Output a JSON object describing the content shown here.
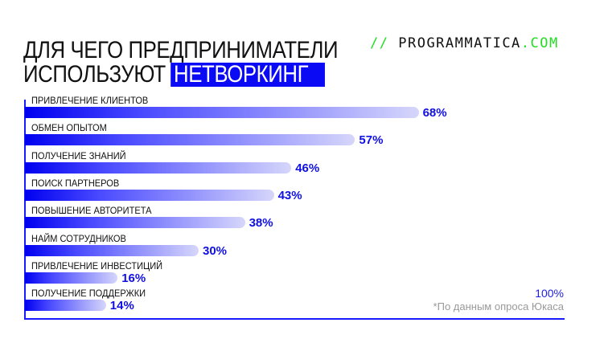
{
  "title": {
    "line1": "ДЛЯ ЧЕГО ПРЕДПРИНИМАТЕЛИ",
    "line2_plain": "ИСПОЛЬЗУЮТ",
    "line2_highlight": "НЕТВОРКИНГ"
  },
  "logo": {
    "slashes": "//",
    "name": "PROGRAMMATICA",
    "tld": ".COM"
  },
  "colors": {
    "accent": "#0a0af5",
    "logo_green": "#22dd22",
    "bar_light": "#d6d6fb"
  },
  "chart_data": {
    "type": "bar",
    "orientation": "horizontal",
    "categories": [
      "ПРИВЛЕЧЕНИЕ КЛИЕНТОВ",
      "ОБМЕН ОПЫТОМ",
      "ПОЛУЧЕНИЕ ЗНАНИЙ",
      "ПОИСК ПАРТНЕРОВ",
      "ПОВЫШЕНИЕ АВТОРИТЕТА",
      "НАЙМ СОТРУДНИКОВ",
      "ПРИВЛЕЧЕНИЕ ИНВЕСТИЦИЙ",
      "ПОЛУЧЕНИЕ ПОДДЕРЖКИ"
    ],
    "values": [
      68,
      57,
      46,
      43,
      38,
      30,
      16,
      14
    ],
    "value_labels": [
      "68%",
      "57%",
      "46%",
      "43%",
      "38%",
      "30%",
      "16%",
      "14%"
    ],
    "xlim": [
      0,
      100
    ],
    "axis_max_label": "100%",
    "grid": false
  },
  "footnote": "*По данным опроса Юкаса"
}
